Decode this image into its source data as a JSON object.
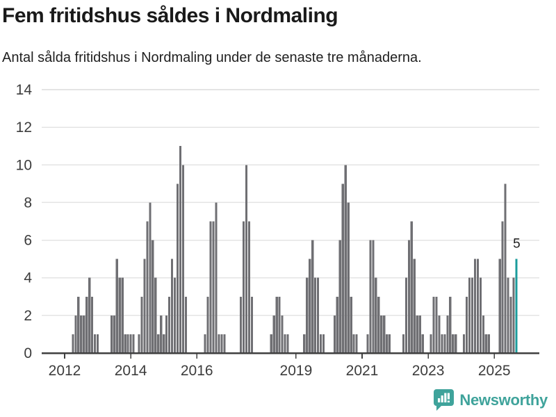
{
  "header": {
    "title": "Fem fritidshus såldes i Nordmaling",
    "subtitle": "Antal sålda fritidshus i Nordmaling under de senaste tre månaderna."
  },
  "logo": {
    "text": "Newsworthy",
    "icon": "bar-chart-speech-bubble-icon",
    "color": "#3fa39b"
  },
  "chart_data": {
    "type": "bar",
    "title": "Fem fritidshus såldes i Nordmaling",
    "subtitle": "Antal sålda fritidshus i Nordmaling under de senaste tre månaderna.",
    "xlabel": "",
    "ylabel": "",
    "ylim": [
      0,
      14
    ],
    "grid": true,
    "start_year": 2012,
    "start_month": 1,
    "frequency": "monthly",
    "values": [
      0,
      0,
      0,
      1,
      2,
      3,
      2,
      2,
      3,
      4,
      3,
      1,
      1,
      0,
      0,
      0,
      0,
      2,
      2,
      5,
      4,
      4,
      1,
      1,
      1,
      1,
      0,
      1,
      3,
      5,
      7,
      8,
      6,
      4,
      1,
      2,
      1,
      2,
      3,
      5,
      4,
      9,
      11,
      10,
      3,
      0,
      0,
      0,
      0,
      0,
      0,
      1,
      3,
      7,
      7,
      8,
      1,
      1,
      1,
      0,
      0,
      0,
      0,
      0,
      3,
      7,
      10,
      7,
      3,
      0,
      0,
      0,
      0,
      0,
      0,
      1,
      2,
      3,
      3,
      2,
      1,
      1,
      0,
      0,
      0,
      0,
      0,
      1,
      4,
      5,
      6,
      4,
      4,
      1,
      1,
      0,
      0,
      0,
      2,
      3,
      6,
      9,
      10,
      8,
      3,
      1,
      1,
      0,
      0,
      0,
      1,
      6,
      6,
      4,
      3,
      2,
      2,
      1,
      1,
      0,
      0,
      0,
      0,
      1,
      4,
      6,
      7,
      5,
      2,
      2,
      1,
      0,
      0,
      1,
      3,
      3,
      2,
      1,
      1,
      2,
      3,
      1,
      1,
      0,
      0,
      1,
      3,
      4,
      4,
      5,
      5,
      4,
      2,
      1,
      1,
      0,
      0,
      0,
      5,
      7,
      9,
      4,
      3,
      4,
      5
    ],
    "highlight_index": 164,
    "annotation": {
      "text": "5"
    },
    "y_ticks": [
      0,
      2,
      4,
      6,
      8,
      10,
      12,
      14
    ],
    "x_ticks": [
      2012,
      2014,
      2016,
      2019,
      2021,
      2023,
      2025
    ],
    "colors": {
      "bar": "#6f6f73",
      "highlight": "#1b9c9c",
      "grid": "#e4e4e4",
      "axis": "#3f3f3f",
      "tick_label": "#3c3c3c",
      "annotation": "#1f1f1f"
    }
  }
}
